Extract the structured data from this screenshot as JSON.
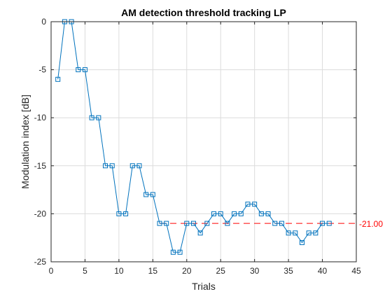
{
  "chart_data": {
    "type": "line",
    "title": "AM detection threshold tracking LP",
    "xlabel": "Trials",
    "ylabel": "Modulation index [dB]",
    "xlim": [
      0,
      45
    ],
    "ylim": [
      -25,
      0
    ],
    "xticks": [
      0,
      5,
      10,
      15,
      20,
      25,
      30,
      35,
      40,
      45
    ],
    "yticks": [
      0,
      -5,
      -10,
      -15,
      -20,
      -25
    ],
    "grid": true,
    "series": [
      {
        "marker": "square",
        "color": "#0072BD",
        "x": [
          1,
          2,
          3,
          4,
          5,
          6,
          7,
          8,
          9,
          10,
          11,
          12,
          13,
          14,
          15,
          16,
          17,
          18,
          19,
          20,
          21,
          22,
          23,
          24,
          25,
          26,
          27,
          28,
          29,
          30,
          31,
          32,
          33,
          34,
          35,
          36,
          37,
          38,
          39,
          40,
          41
        ],
        "y": [
          -6,
          0,
          0,
          -5,
          -5,
          -10,
          -10,
          -15,
          -15,
          -20,
          -20,
          -15,
          -15,
          -18,
          -18,
          -21,
          -21,
          -24,
          -24,
          -21,
          -21,
          -22,
          -21,
          -20,
          -20,
          -21,
          -20,
          -20,
          -19,
          -19,
          -20,
          -20,
          -21,
          -21,
          -22,
          -22,
          -23,
          -22,
          -22,
          -21,
          -21
        ]
      }
    ],
    "reference_line": {
      "y": -21,
      "x_start": 16,
      "x_end": 45,
      "color": "#FF0000",
      "style": "dashed",
      "label": "-21.00"
    }
  }
}
